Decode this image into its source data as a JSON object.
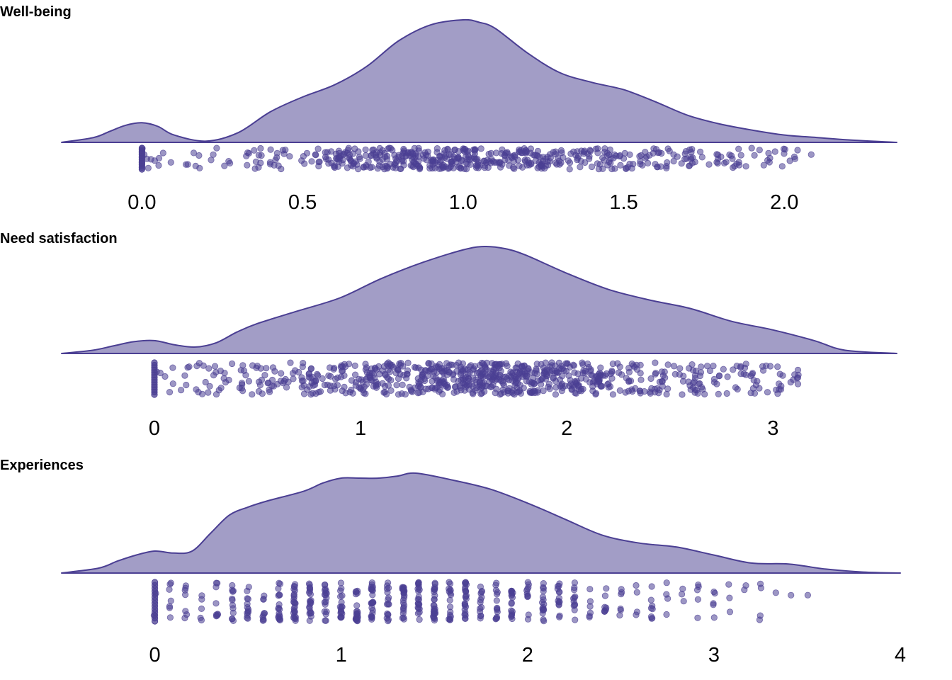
{
  "style": {
    "fill_color": "#a29dc6",
    "line_color": "#4b3f93",
    "point_color": "#4b3f93"
  },
  "chart_data": [
    {
      "type": "area",
      "title": "Well-being",
      "xlim": [
        -0.25,
        2.35
      ],
      "ticks": [
        0.0,
        0.5,
        1.0,
        1.5,
        2.0
      ],
      "tick_labels": [
        "0.0",
        "0.5",
        "1.0",
        "1.5",
        "2.0"
      ],
      "density": {
        "x": [
          -0.25,
          -0.15,
          -0.1,
          -0.05,
          0.0,
          0.05,
          0.1,
          0.2,
          0.3,
          0.4,
          0.5,
          0.6,
          0.7,
          0.8,
          0.9,
          1.0,
          1.05,
          1.1,
          1.2,
          1.3,
          1.4,
          1.5,
          1.6,
          1.7,
          1.8,
          1.9,
          2.0,
          2.1,
          2.2,
          2.35
        ],
        "y": [
          0,
          0.04,
          0.09,
          0.14,
          0.16,
          0.13,
          0.06,
          0.01,
          0.08,
          0.25,
          0.37,
          0.47,
          0.62,
          0.83,
          0.96,
          1.0,
          0.98,
          0.93,
          0.73,
          0.57,
          0.49,
          0.43,
          0.33,
          0.22,
          0.15,
          0.1,
          0.06,
          0.04,
          0.02,
          0
        ]
      },
      "points_range": [
        0.0,
        2.1
      ],
      "points_count": 550
    },
    {
      "type": "area",
      "title": "Need satisfaction",
      "xlim": [
        -0.45,
        3.6
      ],
      "ticks": [
        0,
        1,
        2,
        3
      ],
      "tick_labels": [
        "0",
        "1",
        "2",
        "3"
      ],
      "density": {
        "x": [
          -0.45,
          -0.3,
          -0.2,
          -0.1,
          0.0,
          0.1,
          0.2,
          0.3,
          0.4,
          0.5,
          0.7,
          0.9,
          1.1,
          1.3,
          1.5,
          1.6,
          1.7,
          1.8,
          2.0,
          2.2,
          2.4,
          2.6,
          2.8,
          3.0,
          3.2,
          3.35,
          3.6
        ],
        "y": [
          0,
          0.03,
          0.07,
          0.11,
          0.12,
          0.08,
          0.06,
          0.1,
          0.2,
          0.28,
          0.4,
          0.52,
          0.7,
          0.85,
          0.97,
          1.0,
          0.98,
          0.92,
          0.75,
          0.6,
          0.5,
          0.42,
          0.3,
          0.22,
          0.12,
          0.03,
          0
        ]
      },
      "points_range": [
        0.0,
        3.15
      ],
      "points_count": 800
    },
    {
      "type": "area",
      "title": "Experiences",
      "xlim": [
        -0.5,
        4.0
      ],
      "ticks": [
        0,
        1,
        2,
        3,
        4
      ],
      "tick_labels": [
        "0",
        "1",
        "2",
        "3",
        "4"
      ],
      "density": {
        "x": [
          -0.5,
          -0.3,
          -0.2,
          -0.1,
          0.0,
          0.1,
          0.2,
          0.3,
          0.4,
          0.5,
          0.6,
          0.8,
          0.9,
          1.0,
          1.1,
          1.2,
          1.3,
          1.4,
          1.6,
          1.8,
          2.0,
          2.2,
          2.4,
          2.6,
          2.8,
          3.0,
          3.2,
          3.4,
          3.6,
          3.8,
          4.0
        ],
        "y": [
          0,
          0.05,
          0.12,
          0.18,
          0.22,
          0.2,
          0.22,
          0.4,
          0.58,
          0.66,
          0.72,
          0.82,
          0.9,
          0.95,
          0.95,
          0.95,
          0.97,
          1.0,
          0.93,
          0.84,
          0.7,
          0.54,
          0.38,
          0.3,
          0.26,
          0.18,
          0.1,
          0.09,
          0.04,
          0.01,
          0
        ]
      },
      "points_range": [
        0.0,
        3.5
      ],
      "points_count": 500
    }
  ]
}
